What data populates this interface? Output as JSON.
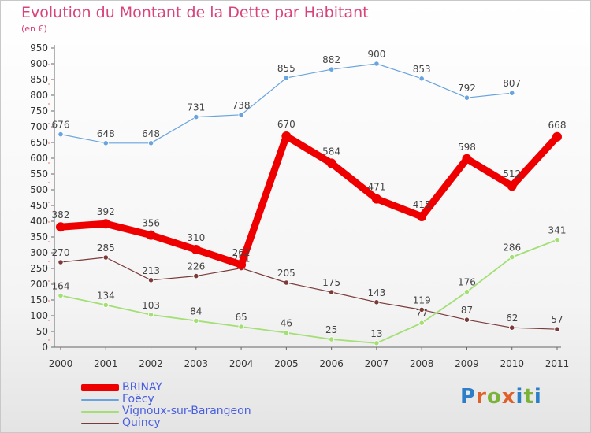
{
  "title": "Evolution du Montant de la Dette par Habitant",
  "subtitle": "(en €)",
  "logo": {
    "text": "Proxiti",
    "letter_colors": [
      "#2a7fc8",
      "#e0602a",
      "#7bb33a",
      "#e0602a",
      "#2a7fc8",
      "#7bb33a",
      "#2a7fc8"
    ]
  },
  "chart_data": {
    "type": "line",
    "title": "Evolution du Montant de la Dette par Habitant",
    "subtitle": "(en €)",
    "xlabel": "",
    "ylabel": "",
    "ylim": [
      0,
      950
    ],
    "yticks": [
      0,
      50,
      100,
      150,
      200,
      250,
      300,
      350,
      400,
      450,
      500,
      550,
      600,
      650,
      700,
      750,
      800,
      850,
      900,
      950
    ],
    "x": [
      "2000",
      "2001",
      "2002",
      "2003",
      "2004",
      "2005",
      "2006",
      "2007",
      "2008",
      "2009",
      "2010",
      "2011"
    ],
    "grid": false,
    "legend_position": "bottom-left",
    "series": [
      {
        "name": "BRINAY",
        "color": "#ee0000",
        "values": [
          382,
          392,
          356,
          310,
          262,
          670,
          584,
          471,
          415,
          598,
          512,
          668
        ]
      },
      {
        "name": "Foëcy",
        "color": "#6aa4de",
        "values": [
          676,
          648,
          648,
          731,
          738,
          855,
          882,
          900,
          853,
          792,
          807,
          null
        ]
      },
      {
        "name": "Vignoux-sur-Barangeon",
        "color": "#a4df76",
        "values": [
          164,
          134,
          103,
          84,
          65,
          46,
          25,
          13,
          77,
          176,
          286,
          341
        ]
      },
      {
        "name": "Quincy",
        "color": "#7a3a3a",
        "values": [
          270,
          285,
          213,
          226,
          251,
          205,
          175,
          143,
          119,
          87,
          62,
          57
        ]
      }
    ]
  }
}
